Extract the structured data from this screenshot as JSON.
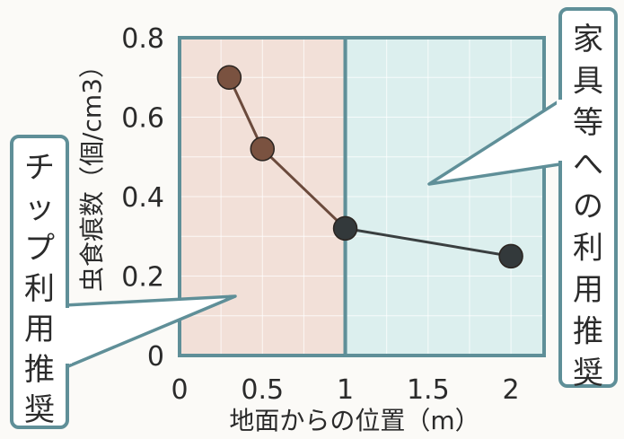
{
  "chart_data": {
    "type": "line",
    "x": [
      0.3,
      0.5,
      1.0,
      2.0
    ],
    "y": [
      0.7,
      0.52,
      0.32,
      0.25
    ],
    "xlabel": "地面からの位置（m）",
    "ylabel": "虫食痕数（個/cm3）",
    "xlim": [
      0,
      2.2
    ],
    "ylim": [
      0,
      0.8
    ],
    "x_ticks": [
      "0",
      "0.5",
      "1",
      "1.5",
      "2"
    ],
    "y_ticks": [
      "0",
      "0.2",
      "0.4",
      "0.6",
      "0.8"
    ],
    "grid": true,
    "regions": [
      {
        "label": "チップ利用推奨",
        "x_range": [
          0,
          1
        ],
        "color": "#f2e0d8"
      },
      {
        "label": "家具等への利用推奨",
        "x_range": [
          1,
          2.2
        ],
        "color": "#dcefee"
      }
    ],
    "colors": {
      "marker_left": "#7a5240",
      "marker_right": "#33393b",
      "line_left": "#6b4a3c",
      "line_right": "#3a3f40",
      "frame": "#5f8f98"
    }
  }
}
